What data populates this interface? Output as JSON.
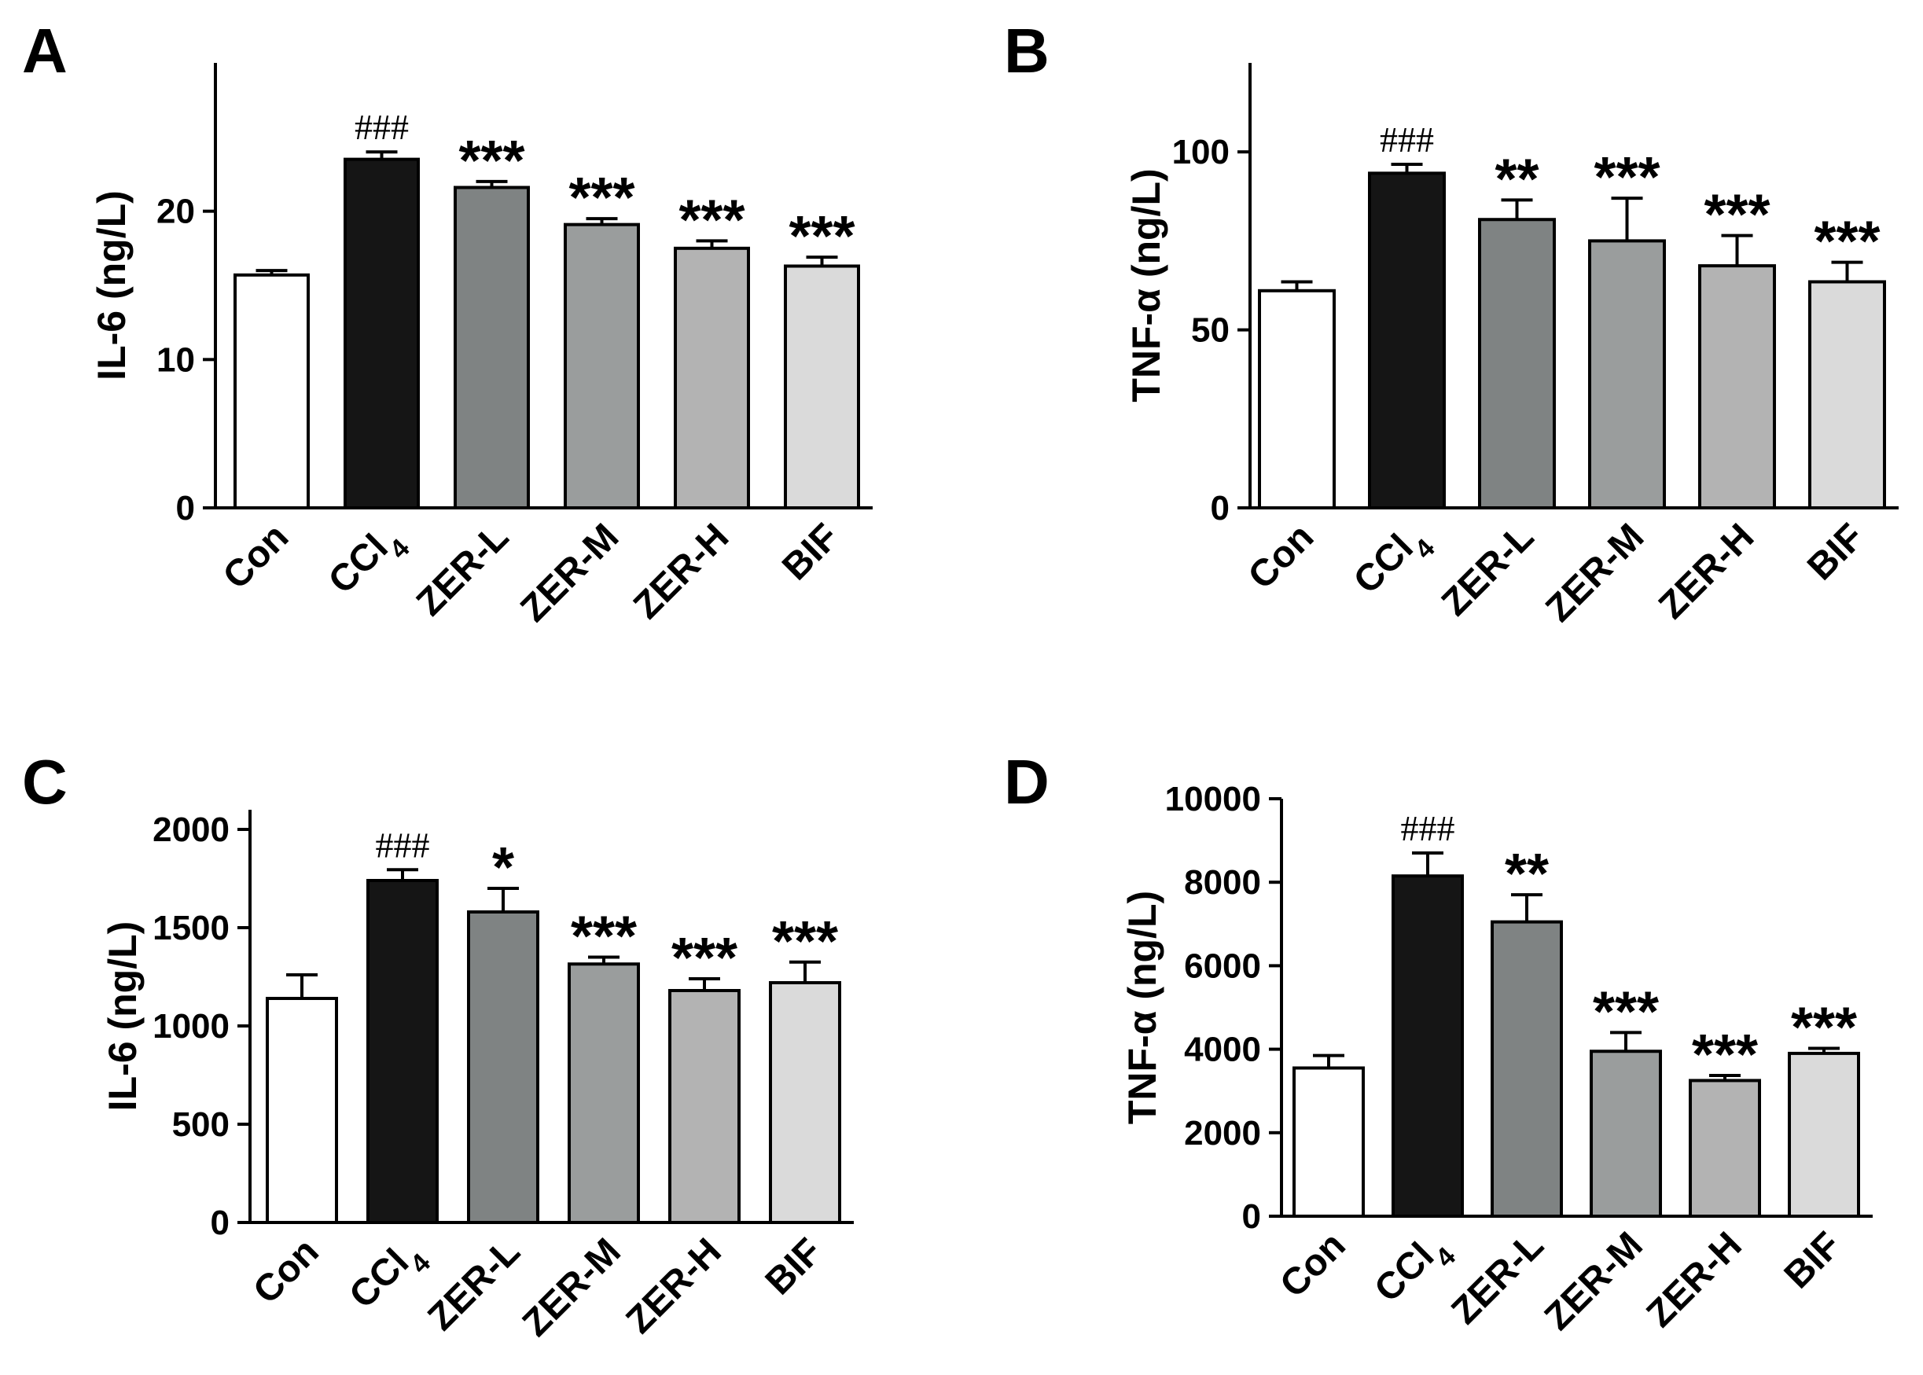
{
  "chart_data": [
    {
      "type": "bar",
      "panel": "A",
      "ylabel": "IL-6 (ng/L)",
      "ylim": [
        0,
        30
      ],
      "yticks": [
        0,
        10,
        20
      ],
      "categories": [
        "Con",
        "CCl",
        "ZER-L",
        "ZER-M",
        "ZER-H",
        "BIF"
      ],
      "category_subscripts": [
        "",
        "4",
        "",
        "",
        "",
        ""
      ],
      "values": [
        15.7,
        23.5,
        21.6,
        19.1,
        17.5,
        16.3
      ],
      "errors": [
        0.3,
        0.5,
        0.4,
        0.4,
        0.5,
        0.6
      ],
      "annotations": [
        "",
        "###",
        "***",
        "***",
        "***",
        "***"
      ],
      "colors": [
        "#ffffff",
        "#151515",
        "#7f8383",
        "#9a9d9d",
        "#b3b3b3",
        "#dadada"
      ]
    },
    {
      "type": "bar",
      "panel": "B",
      "ylabel": "TNF-α (ng/L)",
      "ylim": [
        0,
        125
      ],
      "yticks": [
        0,
        50,
        100
      ],
      "categories": [
        "Con",
        "CCl",
        "ZER-L",
        "ZER-M",
        "ZER-H",
        "BIF"
      ],
      "category_subscripts": [
        "",
        "4",
        "",
        "",
        "",
        ""
      ],
      "values": [
        61,
        94,
        81,
        75,
        68,
        63.5
      ],
      "errors": [
        2.5,
        2.5,
        5.5,
        12,
        8.5,
        5.5
      ],
      "annotations": [
        "",
        "###",
        "**",
        "***",
        "***",
        "***"
      ],
      "colors": [
        "#ffffff",
        "#151515",
        "#7f8383",
        "#9a9d9d",
        "#b3b3b3",
        "#dadada"
      ]
    },
    {
      "type": "bar",
      "panel": "C",
      "ylabel": "IL-6 (ng/L)",
      "ylim": [
        0,
        2100
      ],
      "yticks": [
        0,
        500,
        1000,
        1500,
        2000
      ],
      "categories": [
        "Con",
        "CCl",
        "ZER-L",
        "ZER-M",
        "ZER-H",
        "BIF"
      ],
      "category_subscripts": [
        "",
        "4",
        "",
        "",
        "",
        ""
      ],
      "values": [
        1140,
        1740,
        1580,
        1315,
        1180,
        1220
      ],
      "errors": [
        120,
        55,
        120,
        35,
        60,
        105
      ],
      "annotations": [
        "",
        "###",
        "*",
        "***",
        "***",
        "***"
      ],
      "colors": [
        "#ffffff",
        "#151515",
        "#7f8383",
        "#9a9d9d",
        "#b3b3b3",
        "#dadada"
      ]
    },
    {
      "type": "bar",
      "panel": "D",
      "ylabel": "TNF-α (ng/L)",
      "ylim": [
        0,
        10000
      ],
      "yticks": [
        0,
        2000,
        4000,
        6000,
        8000,
        10000
      ],
      "categories": [
        "Con",
        "CCl",
        "ZER-L",
        "ZER-M",
        "ZER-H",
        "BIF"
      ],
      "category_subscripts": [
        "",
        "4",
        "",
        "",
        "",
        ""
      ],
      "values": [
        3550,
        8150,
        7050,
        3950,
        3250,
        3900
      ],
      "errors": [
        300,
        550,
        650,
        450,
        120,
        120
      ],
      "annotations": [
        "",
        "###",
        "**",
        "***",
        "***",
        "***"
      ],
      "colors": [
        "#ffffff",
        "#151515",
        "#7f8383",
        "#9a9d9d",
        "#b3b3b3",
        "#dadada"
      ]
    }
  ]
}
